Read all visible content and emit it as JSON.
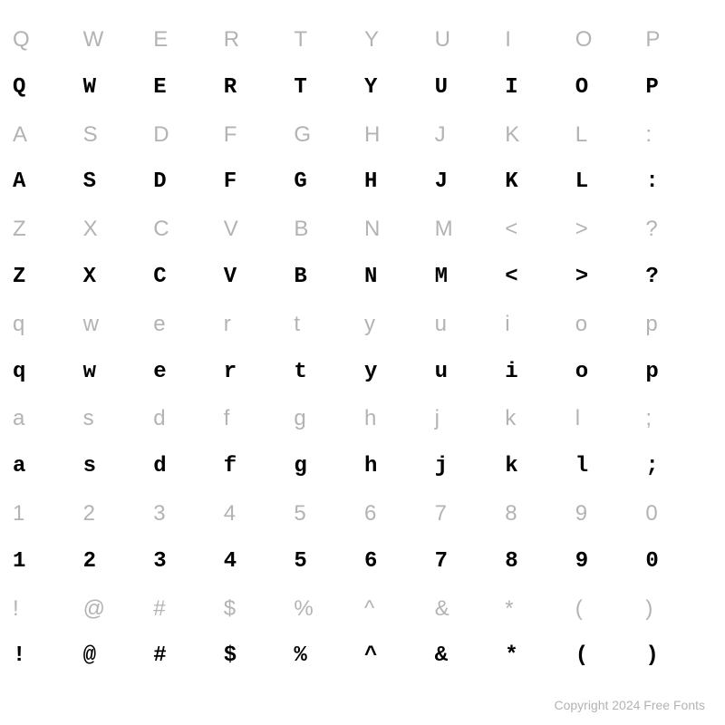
{
  "grid": {
    "columns": 10,
    "rowPairs": 7,
    "rows": [
      [
        "Q",
        "W",
        "E",
        "R",
        "T",
        "Y",
        "U",
        "I",
        "O",
        "P"
      ],
      [
        "A",
        "S",
        "D",
        "F",
        "G",
        "H",
        "J",
        "K",
        "L",
        ":"
      ],
      [
        "Z",
        "X",
        "C",
        "V",
        "B",
        "N",
        "M",
        "<",
        ">",
        "?"
      ],
      [
        "q",
        "w",
        "e",
        "r",
        "t",
        "y",
        "u",
        "i",
        "o",
        "p"
      ],
      [
        "a",
        "s",
        "d",
        "f",
        "g",
        "h",
        "j",
        "k",
        "l",
        ";"
      ],
      [
        "1",
        "2",
        "3",
        "4",
        "5",
        "6",
        "7",
        "8",
        "9",
        "0"
      ],
      [
        "!",
        "@",
        "#",
        "$",
        "%",
        "^",
        "&",
        "*",
        "(",
        ")"
      ]
    ],
    "ref_color": "#b3b3b3",
    "samp_color": "#000000",
    "background_color": "#ffffff",
    "ref_font": "sans-serif",
    "samp_font": "serif-typewriter",
    "cell_fontsize": 24
  },
  "footer": {
    "text": "Copyright 2024 Free Fonts",
    "color": "#b3b3b3",
    "fontsize": 14
  }
}
